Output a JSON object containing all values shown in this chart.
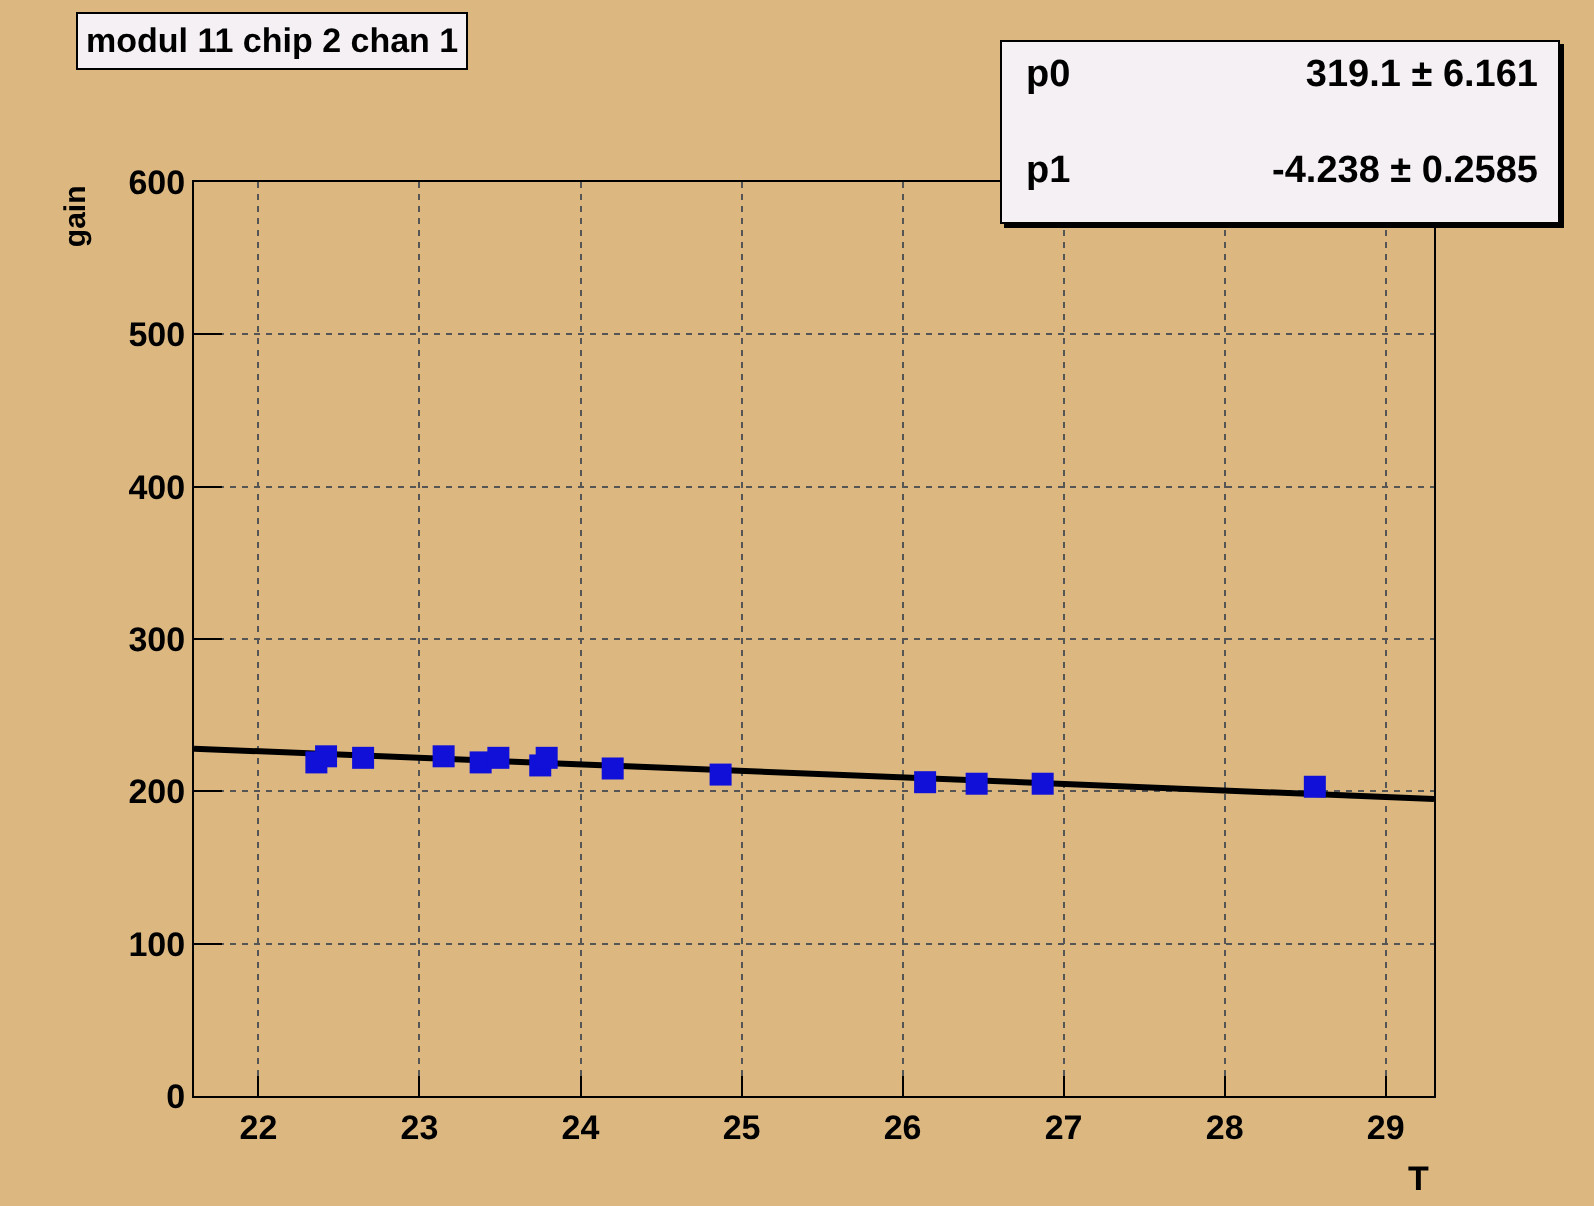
{
  "chart_data": {
    "type": "scatter",
    "title": "modul 11 chip 2 chan 1",
    "xlabel": "T",
    "ylabel": "gain",
    "annotations": [
      "p0",
      "319.1 ± 6.161",
      "p1",
      "-4.238 ± 0.2585"
    ],
    "series": [
      {
        "type": "scatter",
        "color": "#1010d8",
        "marker": "square",
        "x": [
          22.36,
          22.42,
          22.65,
          23.15,
          23.38,
          23.49,
          23.75,
          23.79,
          24.2,
          24.87,
          26.14,
          26.46,
          26.87,
          28.56
        ],
        "values": [
          219,
          223,
          222,
          223,
          219,
          222,
          217,
          222,
          215,
          211,
          206,
          205,
          205,
          203
        ]
      },
      {
        "type": "line",
        "color": "#000000",
        "marker": "none",
        "x": [
          21.6,
          29.3
        ],
        "values": [
          228,
          195
        ]
      }
    ],
    "xlim": [
      21.6,
      29.3
    ],
    "xticks": [
      22,
      23,
      24,
      25,
      26,
      27,
      28,
      29
    ],
    "ylim": [
      0,
      600
    ],
    "yticks": [
      0,
      100,
      200,
      300,
      400,
      500,
      600
    ],
    "grid": true
  }
}
